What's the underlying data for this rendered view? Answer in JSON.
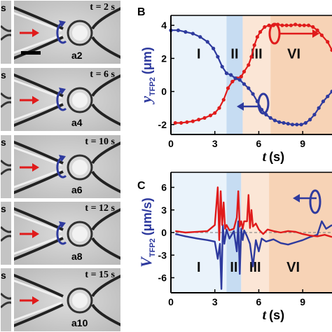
{
  "frames": [
    {
      "time": "t = 2 s",
      "label": "a2",
      "edge": "s"
    },
    {
      "time": "t = 6 s",
      "label": "a4",
      "edge": "s"
    },
    {
      "time": "t = 10 s",
      "label": "a6",
      "edge": "s"
    },
    {
      "time": "t = 12 s",
      "label": "a8",
      "edge": "s"
    },
    {
      "time": "t = 15 s",
      "label": "a10",
      "edge": "s"
    }
  ],
  "colors": {
    "red": "#e01b1b",
    "blue": "#2e3a9e",
    "phase_I": "#eaf3fb",
    "phase_II": "#c6dcf2",
    "phase_III": "#fbe6d6",
    "phase_VI": "#f7d3b6"
  },
  "chart_data": [
    {
      "panel_label": "B",
      "type": "line",
      "ylabel": "y",
      "ylabel_sub": "TFP2",
      "yunit": "(μm)",
      "xlabel": "t",
      "xunit": "(s)",
      "xlim": [
        0,
        11
      ],
      "ylim": [
        -2.6,
        4.6
      ],
      "xticks": [
        "0",
        "3",
        "6",
        "9"
      ],
      "xtick_values": [
        0,
        3,
        6,
        9
      ],
      "yticks": [
        "4",
        "2",
        "0",
        "-2"
      ],
      "ytick_values": [
        4,
        2,
        0,
        -2
      ],
      "phases": [
        {
          "name": "I",
          "from": 0,
          "to": 3.8
        },
        {
          "name": "II",
          "from": 3.8,
          "to": 4.9
        },
        {
          "name": "III",
          "from": 4.9,
          "to": 6.8
        },
        {
          "name": "VI",
          "from": 6.8,
          "to": 11
        }
      ],
      "series": [
        {
          "color": "red",
          "x": [
            0.3,
            0.7,
            1.1,
            1.5,
            1.9,
            2.3,
            2.7,
            3.0,
            3.3,
            3.6,
            3.9,
            4.2,
            4.5,
            4.8,
            5.0,
            5.3,
            5.5,
            5.7,
            5.9,
            6.1,
            6.4,
            6.7,
            7.0,
            7.3,
            7.6,
            7.9,
            8.2,
            8.5,
            8.8,
            9.1,
            9.4,
            9.7,
            10.0,
            10.3,
            10.7,
            11.0
          ],
          "y": [
            -1.9,
            -1.9,
            -1.85,
            -1.8,
            -1.7,
            -1.6,
            -1.45,
            -1.3,
            -1.0,
            -0.5,
            0.2,
            0.6,
            0.8,
            0.9,
            1.2,
            1.6,
            2.1,
            2.8,
            3.3,
            3.6,
            3.9,
            4.0,
            4.0,
            4.05,
            4.0,
            4.0,
            4.0,
            4.05,
            4.0,
            4.0,
            4.0,
            3.9,
            3.7,
            3.4,
            3.0,
            2.5
          ]
        },
        {
          "color": "blue",
          "x": [
            0.0,
            0.5,
            1.0,
            1.5,
            2.0,
            2.5,
            2.9,
            3.2,
            3.5,
            3.8,
            4.1,
            4.4,
            4.7,
            5.0,
            5.3,
            5.6,
            5.9,
            6.2,
            6.5,
            6.8,
            7.1,
            7.4,
            7.7,
            8.0,
            8.3,
            8.6,
            8.9,
            9.2,
            9.5,
            9.8,
            10.1,
            10.4,
            10.7,
            11.0
          ],
          "y": [
            3.7,
            3.7,
            3.6,
            3.5,
            3.3,
            3.0,
            2.6,
            2.1,
            1.5,
            1.1,
            1.0,
            0.8,
            0.7,
            0.45,
            0.2,
            -0.15,
            -0.6,
            -1.1,
            -1.4,
            -1.6,
            -1.75,
            -1.85,
            -1.9,
            -1.95,
            -2.0,
            -2.0,
            -2.0,
            -1.9,
            -1.7,
            -1.4,
            -1.0,
            -0.6,
            -0.3,
            0.0
          ]
        }
      ],
      "annotations": {
        "arrow_left_label": "",
        "rot_icons": 2
      }
    },
    {
      "panel_label": "C",
      "type": "line",
      "ylabel": "V",
      "ylabel_sub": "TFP2",
      "yunit": "(μm/s)",
      "xlabel": "t",
      "xunit": "(s)",
      "xlim": [
        0,
        11
      ],
      "ylim": [
        -8,
        8
      ],
      "xticks": [
        "0",
        "3",
        "6",
        "9"
      ],
      "xtick_values": [
        0,
        3,
        6,
        9
      ],
      "yticks": [
        "6",
        "3",
        "0",
        "-3",
        "-6"
      ],
      "ytick_values": [
        6,
        3,
        0,
        -3,
        -6
      ],
      "phases": [
        {
          "name": "I",
          "from": 0,
          "to": 3.8
        },
        {
          "name": "II",
          "from": 3.8,
          "to": 4.8
        },
        {
          "name": "III",
          "from": 4.8,
          "to": 6.7
        },
        {
          "name": "VI",
          "from": 6.7,
          "to": 11
        }
      ],
      "series": [
        {
          "color": "blue",
          "x": [
            0.3,
            1.0,
            1.8,
            2.5,
            3.0,
            3.2,
            3.35,
            3.45,
            3.55,
            3.65,
            3.8,
            4.0,
            4.3,
            4.5,
            4.6,
            4.7,
            4.8,
            4.9,
            5.0,
            5.2,
            5.4,
            5.6,
            5.8,
            6.0,
            6.2,
            6.5,
            7.0,
            7.5,
            8.0,
            8.5,
            9.0,
            9.5,
            10.0,
            10.3,
            10.6,
            11.0
          ],
          "y": [
            -0.2,
            -0.5,
            -0.8,
            -1.0,
            -1.2,
            -3.5,
            -1.5,
            -7.5,
            1.0,
            -1.5,
            0.4,
            -0.8,
            0.2,
            -2.5,
            1.5,
            -5.5,
            0.5,
            -1.0,
            0.3,
            -0.5,
            -1.5,
            -4.5,
            -1.0,
            -2.5,
            -0.8,
            -1.2,
            -0.9,
            -1.4,
            -1.6,
            -1.3,
            -1.0,
            -0.6,
            -0.3,
            1.5,
            0.5,
            1.0
          ]
        },
        {
          "color": "red",
          "x": [
            0.3,
            1.0,
            1.8,
            2.5,
            3.0,
            3.2,
            3.3,
            3.4,
            3.5,
            3.6,
            3.7,
            3.8,
            4.0,
            4.3,
            4.5,
            4.6,
            4.7,
            4.8,
            4.9,
            5.0,
            5.2,
            5.3,
            5.4,
            5.5,
            5.6,
            5.8,
            6.0,
            6.3,
            6.6,
            7.0,
            7.5,
            8.0,
            8.5,
            9.0,
            9.5,
            10.0,
            10.5,
            11.0
          ],
          "y": [
            0.2,
            0.0,
            0.1,
            0.2,
            1.0,
            6.0,
            -1.0,
            5.5,
            1.0,
            4.0,
            0.5,
            1.0,
            0.3,
            0.5,
            2.0,
            5.5,
            0.8,
            1.5,
            0.5,
            1.5,
            1.5,
            5.0,
            0.6,
            3.0,
            0.8,
            1.2,
            0.4,
            -0.2,
            0.4,
            0.2,
            0.0,
            0.2,
            0.1,
            -0.2,
            -0.4,
            -0.5,
            -0.3,
            -0.6
          ]
        }
      ]
    }
  ]
}
